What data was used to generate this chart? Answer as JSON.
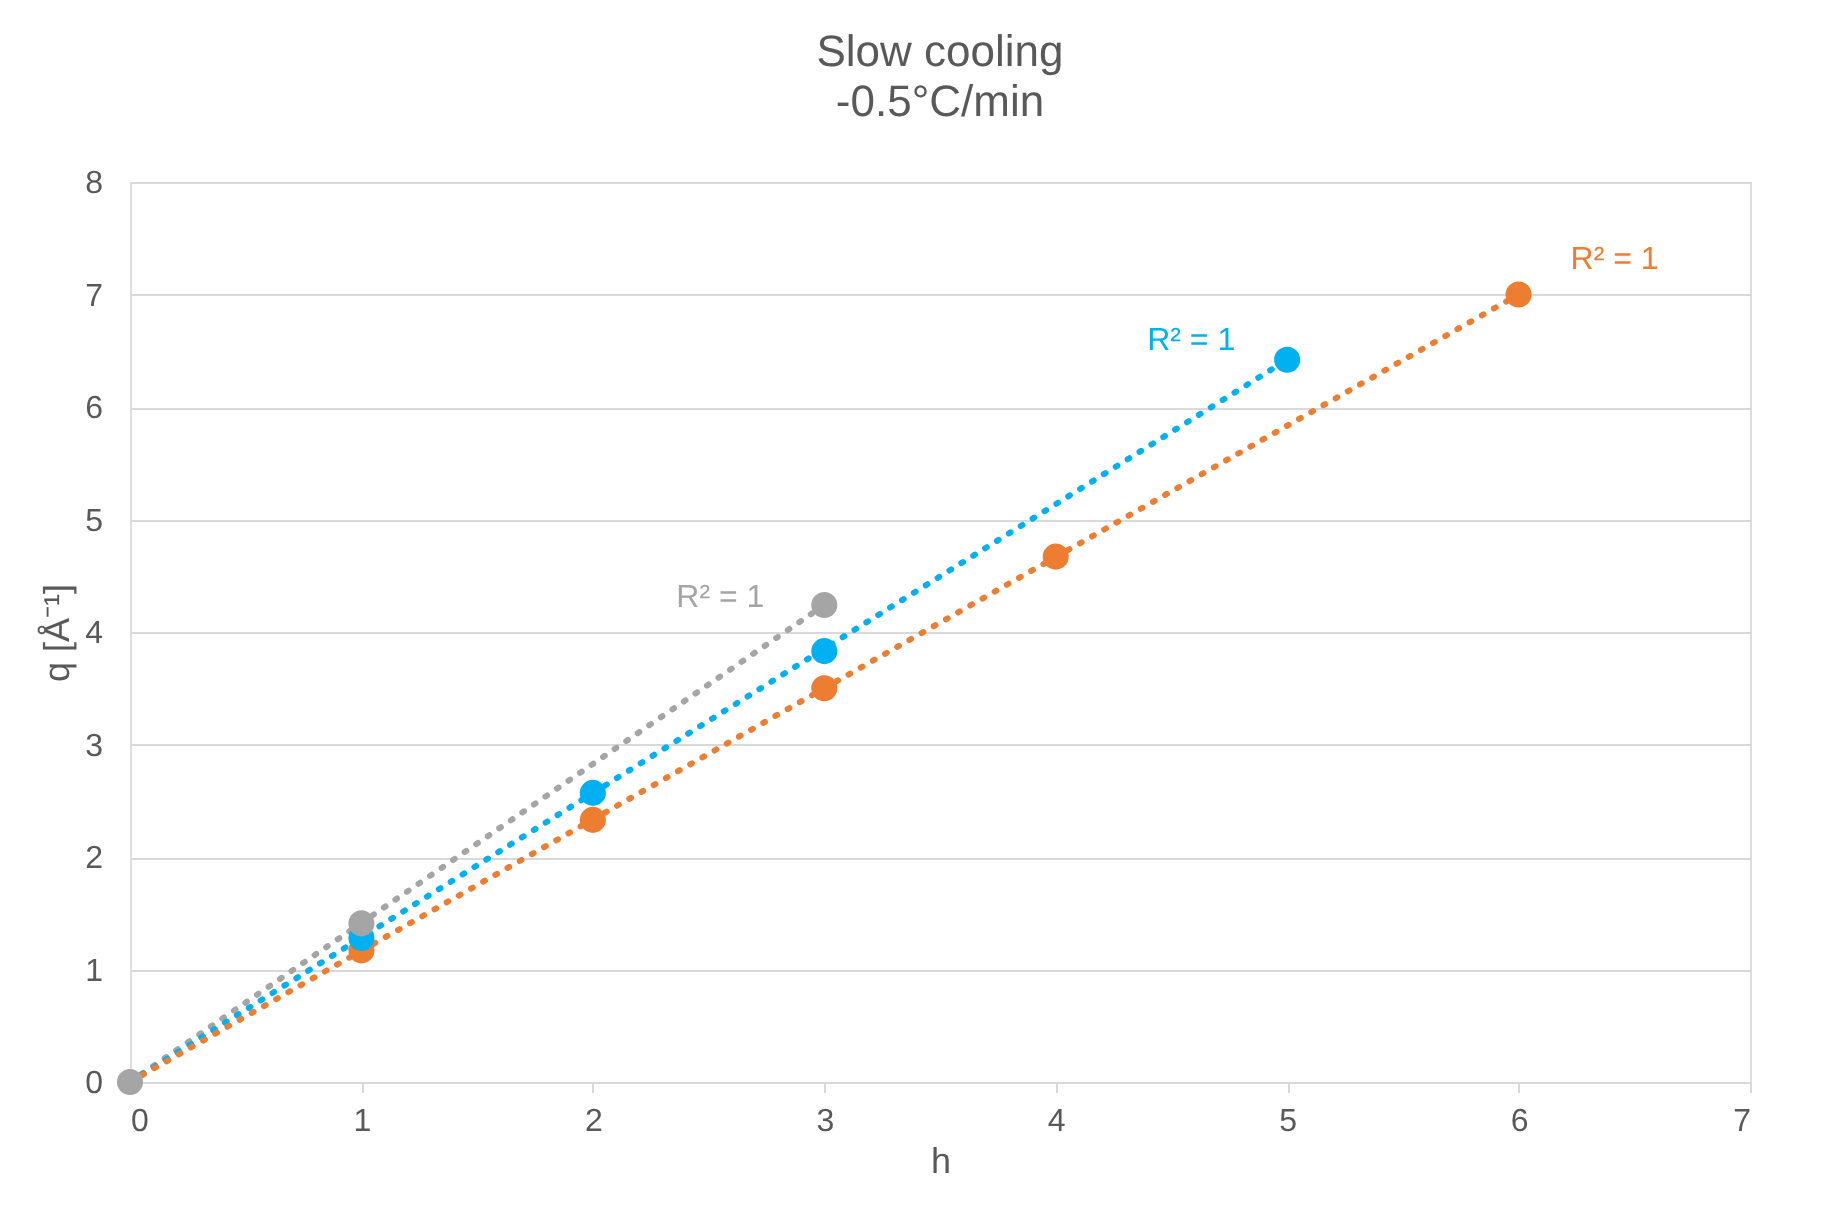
{
  "chart_data": {
    "type": "scatter",
    "title": "Slow cooling",
    "subtitle": "-0.5°C/min",
    "xlabel": "h",
    "ylabel": "q [Å⁻¹]",
    "xlim": [
      0,
      7
    ],
    "xticks": [
      0,
      1,
      2,
      3,
      4,
      5,
      6,
      7
    ],
    "ylim": [
      0,
      8
    ],
    "yticks": [
      0,
      1,
      2,
      3,
      4,
      5,
      6,
      7,
      8
    ],
    "grid": "y",
    "legend": false,
    "marker": "circle",
    "series": [
      {
        "type": "line",
        "color": "#a5a5a5",
        "x": [
          0,
          3
        ],
        "values": [
          0,
          4.24
        ],
        "line_style": "dotted",
        "marker": "none"
      },
      {
        "type": "line",
        "color": "#00b0f0",
        "x": [
          0,
          5
        ],
        "values": [
          0,
          6.42
        ],
        "line_style": "dotted",
        "marker": "none"
      },
      {
        "type": "line",
        "color": "#ed7d31",
        "x": [
          0,
          6
        ],
        "values": [
          0,
          7.0
        ],
        "line_style": "dotted",
        "marker": "none"
      },
      {
        "color": "#ed7d31",
        "x": [
          1,
          2,
          3,
          4,
          6
        ],
        "values": [
          1.17,
          2.33,
          3.5,
          4.67,
          7.0
        ]
      },
      {
        "color": "#00b0f0",
        "x": [
          1,
          2,
          3,
          5
        ],
        "values": [
          1.28,
          2.57,
          3.83,
          6.42
        ]
      },
      {
        "color": "#a5a5a5",
        "x": [
          0,
          1,
          3
        ],
        "values": [
          0,
          1.41,
          4.24
        ]
      }
    ],
    "annotations": [
      "R² = 1",
      "R² = 1",
      "R² = 1"
    ]
  }
}
